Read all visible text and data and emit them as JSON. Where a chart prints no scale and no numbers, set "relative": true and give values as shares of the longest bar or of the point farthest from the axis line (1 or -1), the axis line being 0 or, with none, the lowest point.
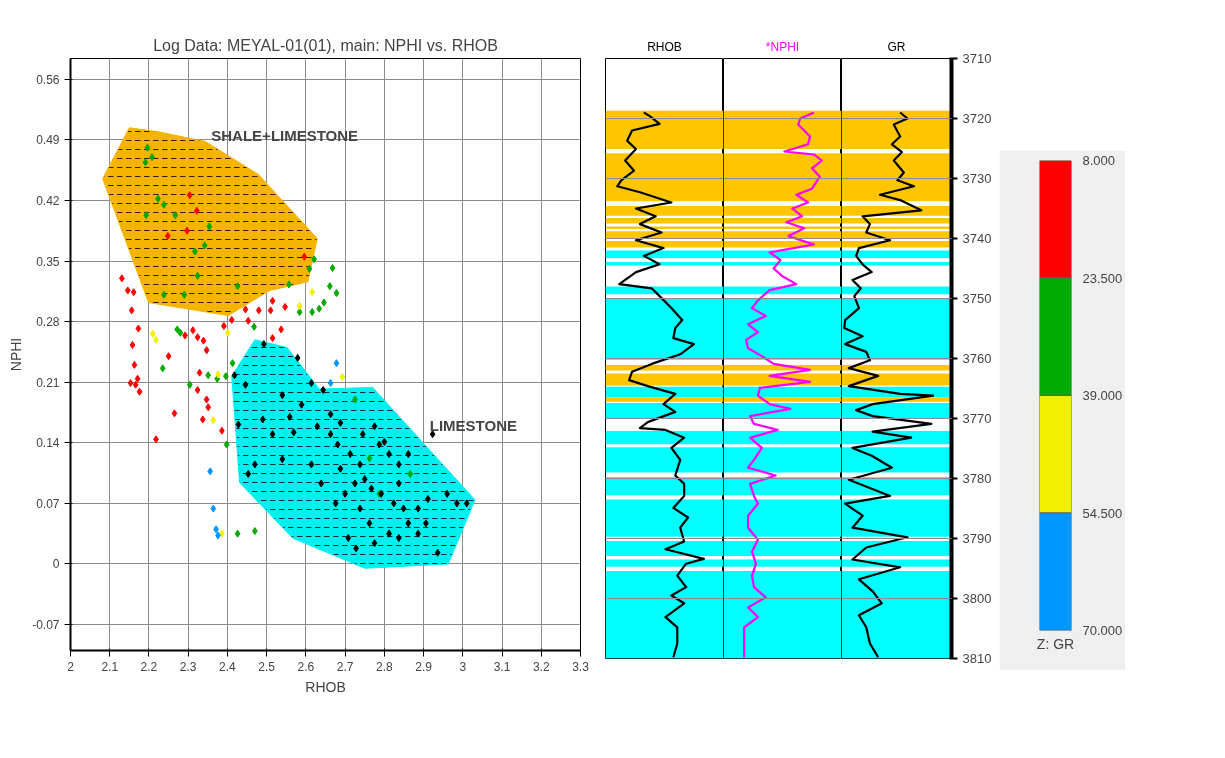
{
  "chart_data": [
    {
      "type": "scatter",
      "title": "Log Data: MEYAL-01(01), main: NPHI vs. RHOB",
      "xlabel": "RHOB",
      "ylabel": "NPHI",
      "clabel": "Z: GR",
      "xlim": [
        2,
        3.3
      ],
      "xticks": [
        2,
        2.1,
        2.2,
        2.3,
        2.4,
        2.5,
        2.6,
        2.7,
        2.8,
        2.9,
        3,
        3.1,
        3.2,
        3.3
      ],
      "ylim": [
        -0.1,
        0.584
      ],
      "yticks": [
        -0.07,
        0,
        0.07,
        0.14,
        0.21,
        0.28,
        0.35,
        0.42,
        0.49,
        0.56
      ],
      "clim": [
        8,
        70
      ],
      "cticks": [
        {
          "value": 8,
          "label": "8.000"
        },
        {
          "value": 23.5,
          "label": "23.500"
        },
        {
          "value": 39,
          "label": "39.000"
        },
        {
          "value": 54.5,
          "label": "54.500"
        },
        {
          "value": 70,
          "label": "70.000"
        }
      ],
      "colors": [
        "#ff0000",
        "#00aa00",
        "#f0f000",
        "#0096ff"
      ],
      "grid": true,
      "annotations": [
        "SHALE+LIMESTONE",
        "LIMESTONE"
      ],
      "series": [
        {
          "type": "area",
          "color": "#f5b400",
          "x": [
            2.15,
            2.227,
            2.344,
            2.479,
            2.629,
            2.605,
            2.508,
            2.402,
            2.199,
            2.082
          ],
          "values": [
            0.504,
            0.499,
            0.488,
            0.45,
            0.376,
            0.326,
            0.316,
            0.287,
            0.302,
            0.445
          ]
        },
        {
          "type": "area",
          "color": "#00f0f0",
          "x": [
            2.47,
            2.552,
            2.634,
            2.77,
            3.031,
            2.963,
            2.75,
            2.566,
            2.431,
            2.411
          ],
          "values": [
            0.259,
            0.25,
            0.202,
            0.204,
            0.074,
            0,
            -0.005,
            0.03,
            0.094,
            0.217
          ]
        },
        {
          "type": "scatter",
          "marker": "diamond",
          "x": [
            2.131,
            2.146,
            2.161,
            2.156,
            2.173,
            2.158,
            2.163,
            2.153,
            2.166,
            2.176,
            2.171,
            2.25,
            2.265,
            2.218,
            2.391,
            2.411,
            2.453,
            2.48,
            2.51,
            2.547,
            2.292,
            2.312,
            2.324,
            2.339,
            2.347,
            2.329,
            2.324,
            2.347,
            2.351,
            2.337,
            2.386,
            2.515,
            2.537,
            2.515,
            2.446,
            2.596,
            2.322,
            2.248,
            2.297,
            2.304,
            2.196,
            2.208,
            2.191,
            2.223,
            2.238,
            2.267,
            2.193,
            2.317,
            2.354,
            2.324,
            2.426,
            2.557,
            2.609,
            2.621,
            2.668,
            2.661,
            2.678,
            2.646,
            2.634,
            2.616,
            2.584,
            2.468,
            2.29,
            2.28,
            2.235,
            2.304,
            2.351,
            2.374,
            2.396,
            2.413,
            2.342,
            2.238,
            2.272,
            2.398,
            2.426,
            2.47,
            2.725,
            2.762,
            2.787,
            2.812,
            2.866,
            2.21,
            2.218,
            2.376,
            2.364,
            2.401,
            2.584,
            2.616,
            2.693,
            2.386,
            2.356,
            2.364,
            2.371,
            2.376,
            2.678,
            2.663
          ],
          "values": [
            0.33,
            0.316,
            0.314,
            0.293,
            0.272,
            0.253,
            0.23,
            0.209,
            0.207,
            0.199,
            0.214,
            0.24,
            0.174,
            0.144,
            0.275,
            0.282,
            0.281,
            0.293,
            0.293,
            0.297,
            0.264,
            0.27,
            0.262,
            0.258,
            0.247,
            0.221,
            0.201,
            0.19,
            0.181,
            0.167,
            0.154,
            0.304,
            0.271,
            0.261,
            0.294,
            0.355,
            0.408,
            0.379,
            0.385,
            0.426,
            0.481,
            0.47,
            0.464,
            0.422,
            0.415,
            0.403,
            0.403,
            0.361,
            0.39,
            0.333,
            0.321,
            0.323,
            0.341,
            0.352,
            0.342,
            0.321,
            0.313,
            0.302,
            0.295,
            0.291,
            0.291,
            0.274,
            0.311,
            0.267,
            0.226,
            0.207,
            0.218,
            0.214,
            0.217,
            0.232,
            0.368,
            0.311,
            0.271,
            0.138,
            0.035,
            0.038,
            0.19,
            0.122,
            0.081,
            0.035,
            0.104,
            0.266,
            0.259,
            0.219,
            0.166,
            0.267,
            0.298,
            0.314,
            0.216,
            0.035,
            0.107,
            0.064,
            0.04,
            0.033,
            0.232,
            0.209
          ],
          "colors": [
            "#ff0000",
            "#ff0000",
            "#ff0000",
            "#ff0000",
            "#ff0000",
            "#ff0000",
            "#ff0000",
            "#ff0000",
            "#ff0000",
            "#ff0000",
            "#ff0000",
            "#ff0000",
            "#ff0000",
            "#ff0000",
            "#ff0000",
            "#ff0000",
            "#ff0000",
            "#ff0000",
            "#ff0000",
            "#ff0000",
            "#ff0000",
            "#ff0000",
            "#ff0000",
            "#ff0000",
            "#ff0000",
            "#ff0000",
            "#ff0000",
            "#ff0000",
            "#ff0000",
            "#ff0000",
            "#ff0000",
            "#ff0000",
            "#ff0000",
            "#ff0000",
            "#ff0000",
            "#ff0000",
            "#ff0000",
            "#ff0000",
            "#ff0000",
            "#ff0000",
            "#00aa00",
            "#00aa00",
            "#00aa00",
            "#00aa00",
            "#00aa00",
            "#00aa00",
            "#00aa00",
            "#00aa00",
            "#00aa00",
            "#00aa00",
            "#00aa00",
            "#00aa00",
            "#00aa00",
            "#00aa00",
            "#00aa00",
            "#00aa00",
            "#00aa00",
            "#00aa00",
            "#00aa00",
            "#00aa00",
            "#00aa00",
            "#00aa00",
            "#00aa00",
            "#00aa00",
            "#00aa00",
            "#00aa00",
            "#00aa00",
            "#00aa00",
            "#00aa00",
            "#00aa00",
            "#00aa00",
            "#00aa00",
            "#00aa00",
            "#00aa00",
            "#00aa00",
            "#00aa00",
            "#00aa00",
            "#00aa00",
            "#00aa00",
            "#00aa00",
            "#00aa00",
            "#f0f000",
            "#f0f000",
            "#f0f000",
            "#f0f000",
            "#f0f000",
            "#f0f000",
            "#f0f000",
            "#f0f000",
            "#f0f000",
            "#0096ff",
            "#0096ff",
            "#0096ff",
            "#0096ff",
            "#0096ff",
            "#0096ff"
          ]
        },
        {
          "type": "scatter",
          "marker": "diamond",
          "color": "#000000",
          "x": [
            2.493,
            2.579,
            2.418,
            2.614,
            2.644,
            2.589,
            2.663,
            2.688,
            2.49,
            2.515,
            2.453,
            2.47,
            2.54,
            2.614,
            2.639,
            2.688,
            2.713,
            2.725,
            2.738,
            2.762,
            2.775,
            2.812,
            2.837,
            2.861,
            2.886,
            2.936,
            2.738,
            2.75,
            2.767,
            2.792,
            2.824,
            2.849,
            2.886,
            2.911,
            2.96,
            2.985,
            3.01,
            2.787,
            2.812,
            2.837,
            2.663,
            2.681,
            2.629,
            2.569,
            2.428,
            2.446,
            2.54,
            2.559,
            2.745,
            2.775,
            2.8,
            2.861,
            2.923,
            2.728,
            2.708,
            2.906,
            2.837,
            2.7,
            2.676
          ],
          "values": [
            0.254,
            0.238,
            0.218,
            0.209,
            0.201,
            0.184,
            0.173,
            0.163,
            0.167,
            0.15,
            0.104,
            0.115,
            0.121,
            0.115,
            0.093,
            0.11,
            0.127,
            0.093,
            0.064,
            0.047,
            0.024,
            0.035,
            0.03,
            0.047,
            0.035,
            0.013,
            0.115,
            0.098,
            0.087,
            0.081,
            0.07,
            0.064,
            0.064,
            0.075,
            0.081,
            0.07,
            0.07,
            0.138,
            0.127,
            0.115,
            0.15,
            0.138,
            0.159,
            0.152,
            0.161,
            0.207,
            0.195,
            0.17,
            0.15,
            0.159,
            0.141,
            0.127,
            0.15,
            0.018,
            0.03,
            0.047,
            0.093,
            0.081,
            0.07
          ]
        }
      ]
    },
    {
      "type": "line",
      "orientation": "horizontal",
      "relative": true,
      "title": "RHOB",
      "ylim": [
        3810,
        3710
      ],
      "yticks": [
        3710,
        3720,
        3730,
        3740,
        3750,
        3760,
        3770,
        3780,
        3790,
        3800,
        3810
      ],
      "tick_labels": false,
      "grid": "y",
      "bands": [
        {
          "axis": "y",
          "from": 3718.7,
          "to": 3725.1,
          "color": "#ffc600"
        },
        {
          "axis": "y",
          "from": 3725.8,
          "to": 3733.8,
          "color": "#ffc600"
        },
        {
          "axis": "y",
          "from": 3734.6,
          "to": 3736.2,
          "color": "#ffc600"
        },
        {
          "axis": "y",
          "from": 3736.6,
          "to": 3737.5,
          "color": "#ffc600"
        },
        {
          "axis": "y",
          "from": 3738.0,
          "to": 3738.4,
          "color": "#ffc600"
        },
        {
          "axis": "y",
          "from": 3738.8,
          "to": 3740.1,
          "color": "#ffc600"
        },
        {
          "axis": "y",
          "from": 3740.4,
          "to": 3741.5,
          "color": "#ffc600"
        },
        {
          "axis": "y",
          "from": 3742.0,
          "to": 3743.3,
          "color": "#00ffff"
        },
        {
          "axis": "y",
          "from": 3743.9,
          "to": 3744.5,
          "color": "#00ffff"
        },
        {
          "axis": "y",
          "from": 3748.0,
          "to": 3749.3,
          "color": "#00ffff"
        },
        {
          "axis": "y",
          "from": 3750.1,
          "to": 3760.2,
          "color": "#00ffff"
        },
        {
          "axis": "y",
          "from": 3761.1,
          "to": 3762.0,
          "color": "#ffc600"
        },
        {
          "axis": "y",
          "from": 3762.5,
          "to": 3764.5,
          "color": "#ffc600"
        },
        {
          "axis": "y",
          "from": 3764.7,
          "to": 3766.5,
          "color": "#00ffff"
        },
        {
          "axis": "y",
          "from": 3766.5,
          "to": 3767.2,
          "color": "#ffc600"
        },
        {
          "axis": "y",
          "from": 3767.4,
          "to": 3769.9,
          "color": "#00ffff"
        },
        {
          "axis": "y",
          "from": 3772.1,
          "to": 3774.3,
          "color": "#00ffff"
        },
        {
          "axis": "y",
          "from": 3774.8,
          "to": 3779.0,
          "color": "#00ffff"
        },
        {
          "axis": "y",
          "from": 3779.8,
          "to": 3782.8,
          "color": "#00ffff"
        },
        {
          "axis": "y",
          "from": 3783.5,
          "to": 3789.7,
          "color": "#00ffff"
        },
        {
          "axis": "y",
          "from": 3790.4,
          "to": 3792.9,
          "color": "#00ffff"
        },
        {
          "axis": "y",
          "from": 3793.5,
          "to": 3794.7,
          "color": "#00ffff"
        },
        {
          "axis": "y",
          "from": 3795.4,
          "to": 3810,
          "color": "#00ffff"
        }
      ],
      "series": [
        {
          "color": "#000000",
          "x": [
            3719.0,
            3719.6,
            3720.9,
            3722.0,
            3723.7,
            3725.1,
            3727.0,
            3728.7,
            3730.3,
            3731.3,
            3732.3,
            3734.0,
            3735.0,
            3736.3,
            3737.6,
            3739.0,
            3740.3,
            3741.6,
            3742.9,
            3744.3,
            3745.6,
            3747.6,
            3748.3,
            3749.6,
            3751.6,
            3753.6,
            3754.9,
            3756.6,
            3757.6,
            3759.3,
            3760.9,
            3762.2,
            3763.6,
            3764.6,
            3765.9,
            3767.6,
            3768.9,
            3770.6,
            3771.6,
            3771.9,
            3773.2,
            3774.9,
            3776.9,
            3779.5,
            3780.9,
            3782.9,
            3784.9,
            3786.5,
            3788.2,
            3790.5,
            3791.8,
            3793.4,
            3794.2,
            3796.2,
            3798.1,
            3799.5,
            3800.8,
            3803.1,
            3804.8,
            3807.5,
            3809.8
          ],
          "values": [
            0.39,
            0.45,
            0.55,
            0.27,
            0.22,
            0.31,
            0.2,
            0.29,
            0.16,
            0.12,
            0.35,
            0.67,
            0.31,
            0.51,
            0.35,
            0.57,
            0.31,
            0.59,
            0.39,
            0.55,
            0.31,
            0.14,
            0.47,
            0.55,
            0.67,
            0.78,
            0.71,
            0.69,
            0.9,
            0.76,
            0.47,
            0.27,
            0.24,
            0.43,
            0.71,
            0.59,
            0.71,
            0.43,
            0.35,
            0.61,
            0.8,
            0.67,
            0.76,
            0.71,
            0.8,
            0.8,
            0.69,
            0.84,
            0.76,
            0.8,
            0.61,
            1.0,
            0.82,
            0.73,
            0.82,
            0.67,
            0.8,
            0.61,
            0.73,
            0.73,
            0.69
          ]
        }
      ]
    },
    {
      "type": "line",
      "orientation": "horizontal",
      "relative": true,
      "title": "*NPHI",
      "ylim": [
        3810,
        3710
      ],
      "yticks": [
        3710,
        3720,
        3730,
        3740,
        3750,
        3760,
        3770,
        3780,
        3790,
        3800,
        3810
      ],
      "tick_labels": false,
      "grid": "y",
      "bands": [
        {
          "axis": "y",
          "from": 3718.7,
          "to": 3725.1,
          "color": "#ffc600"
        },
        {
          "axis": "y",
          "from": 3725.8,
          "to": 3733.8,
          "color": "#ffc600"
        },
        {
          "axis": "y",
          "from": 3734.6,
          "to": 3736.2,
          "color": "#ffc600"
        },
        {
          "axis": "y",
          "from": 3736.6,
          "to": 3737.5,
          "color": "#ffc600"
        },
        {
          "axis": "y",
          "from": 3738.0,
          "to": 3738.4,
          "color": "#ffc600"
        },
        {
          "axis": "y",
          "from": 3738.8,
          "to": 3740.1,
          "color": "#ffc600"
        },
        {
          "axis": "y",
          "from": 3740.4,
          "to": 3741.5,
          "color": "#ffc600"
        },
        {
          "axis": "y",
          "from": 3742.0,
          "to": 3743.3,
          "color": "#00ffff"
        },
        {
          "axis": "y",
          "from": 3743.9,
          "to": 3744.5,
          "color": "#00ffff"
        },
        {
          "axis": "y",
          "from": 3748.0,
          "to": 3749.3,
          "color": "#00ffff"
        },
        {
          "axis": "y",
          "from": 3750.1,
          "to": 3760.2,
          "color": "#00ffff"
        },
        {
          "axis": "y",
          "from": 3761.1,
          "to": 3762.0,
          "color": "#ffc600"
        },
        {
          "axis": "y",
          "from": 3762.5,
          "to": 3764.5,
          "color": "#ffc600"
        },
        {
          "axis": "y",
          "from": 3764.7,
          "to": 3766.5,
          "color": "#00ffff"
        },
        {
          "axis": "y",
          "from": 3766.5,
          "to": 3767.2,
          "color": "#ffc600"
        },
        {
          "axis": "y",
          "from": 3767.4,
          "to": 3769.9,
          "color": "#00ffff"
        },
        {
          "axis": "y",
          "from": 3772.1,
          "to": 3774.3,
          "color": "#00ffff"
        },
        {
          "axis": "y",
          "from": 3774.8,
          "to": 3779.0,
          "color": "#00ffff"
        },
        {
          "axis": "y",
          "from": 3779.8,
          "to": 3782.8,
          "color": "#00ffff"
        },
        {
          "axis": "y",
          "from": 3783.5,
          "to": 3789.7,
          "color": "#00ffff"
        },
        {
          "axis": "y",
          "from": 3790.4,
          "to": 3792.9,
          "color": "#00ffff"
        },
        {
          "axis": "y",
          "from": 3793.5,
          "to": 3794.7,
          "color": "#00ffff"
        },
        {
          "axis": "y",
          "from": 3795.4,
          "to": 3810,
          "color": "#00ffff"
        }
      ],
      "series": [
        {
          "color": "#ff00ff",
          "x": [
            3719.0,
            3720.0,
            3721.0,
            3723.0,
            3724.3,
            3725.5,
            3726.0,
            3727.0,
            3728.3,
            3729.7,
            3731.7,
            3732.7,
            3734.0,
            3735.0,
            3736.3,
            3737.3,
            3738.3,
            3739.6,
            3741.0,
            3742.3,
            3743.6,
            3745.0,
            3746.3,
            3747.6,
            3748.6,
            3750.3,
            3751.6,
            3752.9,
            3754.3,
            3755.6,
            3756.9,
            3758.3,
            3759.6,
            3760.9,
            3761.9,
            3762.9,
            3763.9,
            3764.9,
            3766.2,
            3767.6,
            3768.4,
            3769.6,
            3770.9,
            3771.9,
            3773.2,
            3774.9,
            3776.9,
            3778.2,
            3779.5,
            3780.9,
            3782.9,
            3784.2,
            3786.2,
            3788.2,
            3790.2,
            3792.2,
            3794.2,
            3796.2,
            3798.1,
            3799.8,
            3801.5,
            3803.1,
            3804.8,
            3807.5,
            3809.8
          ],
          "values": [
            0.92,
            0.78,
            0.76,
            0.88,
            0.86,
            0.62,
            0.92,
            1.0,
            0.9,
            0.98,
            0.9,
            0.74,
            0.86,
            0.7,
            0.8,
            0.64,
            0.82,
            0.66,
            0.92,
            0.47,
            0.58,
            0.51,
            0.6,
            0.74,
            0.47,
            0.35,
            0.29,
            0.43,
            0.25,
            0.35,
            0.23,
            0.25,
            0.39,
            0.51,
            0.88,
            0.47,
            0.88,
            0.37,
            0.35,
            0.47,
            0.68,
            0.27,
            0.31,
            0.55,
            0.27,
            0.39,
            0.31,
            0.25,
            0.53,
            0.27,
            0.31,
            0.35,
            0.25,
            0.25,
            0.35,
            0.29,
            0.33,
            0.29,
            0.31,
            0.43,
            0.25,
            0.35,
            0.21,
            0.21,
            0.21
          ]
        }
      ]
    },
    {
      "type": "line",
      "orientation": "horizontal",
      "relative": true,
      "title": "GR",
      "ylim": [
        3810,
        3710
      ],
      "yticks": [
        3710,
        3720,
        3730,
        3740,
        3750,
        3760,
        3770,
        3780,
        3790,
        3800,
        3810
      ],
      "tick_labels": "y",
      "grid": "y",
      "bands": [
        {
          "axis": "y",
          "from": 3718.7,
          "to": 3725.1,
          "color": "#ffc600"
        },
        {
          "axis": "y",
          "from": 3725.8,
          "to": 3733.8,
          "color": "#ffc600"
        },
        {
          "axis": "y",
          "from": 3734.6,
          "to": 3736.2,
          "color": "#ffc600"
        },
        {
          "axis": "y",
          "from": 3736.6,
          "to": 3737.5,
          "color": "#ffc600"
        },
        {
          "axis": "y",
          "from": 3738.0,
          "to": 3738.4,
          "color": "#ffc600"
        },
        {
          "axis": "y",
          "from": 3738.8,
          "to": 3740.1,
          "color": "#ffc600"
        },
        {
          "axis": "y",
          "from": 3740.4,
          "to": 3741.5,
          "color": "#ffc600"
        },
        {
          "axis": "y",
          "from": 3742.0,
          "to": 3743.3,
          "color": "#00ffff"
        },
        {
          "axis": "y",
          "from": 3743.9,
          "to": 3744.5,
          "color": "#00ffff"
        },
        {
          "axis": "y",
          "from": 3748.0,
          "to": 3749.3,
          "color": "#00ffff"
        },
        {
          "axis": "y",
          "from": 3750.1,
          "to": 3760.2,
          "color": "#00ffff"
        },
        {
          "axis": "y",
          "from": 3761.1,
          "to": 3762.0,
          "color": "#ffc600"
        },
        {
          "axis": "y",
          "from": 3762.5,
          "to": 3764.5,
          "color": "#ffc600"
        },
        {
          "axis": "y",
          "from": 3764.7,
          "to": 3766.5,
          "color": "#00ffff"
        },
        {
          "axis": "y",
          "from": 3766.5,
          "to": 3767.2,
          "color": "#ffc600"
        },
        {
          "axis": "y",
          "from": 3767.4,
          "to": 3769.9,
          "color": "#00ffff"
        },
        {
          "axis": "y",
          "from": 3772.1,
          "to": 3774.3,
          "color": "#00ffff"
        },
        {
          "axis": "y",
          "from": 3774.8,
          "to": 3779.0,
          "color": "#00ffff"
        },
        {
          "axis": "y",
          "from": 3779.8,
          "to": 3782.8,
          "color": "#00ffff"
        },
        {
          "axis": "y",
          "from": 3783.5,
          "to": 3789.7,
          "color": "#00ffff"
        },
        {
          "axis": "y",
          "from": 3790.4,
          "to": 3792.9,
          "color": "#00ffff"
        },
        {
          "axis": "y",
          "from": 3793.5,
          "to": 3794.7,
          "color": "#00ffff"
        },
        {
          "axis": "y",
          "from": 3795.4,
          "to": 3810,
          "color": "#00ffff"
        }
      ],
      "series": [
        {
          "color": "#000000",
          "x": [
            3719.0,
            3720.0,
            3721.0,
            3723.0,
            3724.3,
            3725.6,
            3727.0,
            3729.0,
            3730.3,
            3731.3,
            3732.7,
            3733.6,
            3735.3,
            3736.3,
            3737.6,
            3739.0,
            3740.3,
            3741.6,
            3742.9,
            3744.3,
            3745.6,
            3746.9,
            3748.3,
            3749.6,
            3751.6,
            3753.6,
            3754.9,
            3756.3,
            3757.6,
            3758.9,
            3760.3,
            3761.6,
            3762.9,
            3764.6,
            3765.9,
            3766.2,
            3767.6,
            3768.6,
            3769.6,
            3770.9,
            3772.2,
            3773.2,
            3774.9,
            3776.2,
            3778.2,
            3780.2,
            3782.9,
            3784.2,
            3786.2,
            3788.2,
            3789.8,
            3791.5,
            3793.5,
            3794.8,
            3796.8,
            3798.8,
            3800.8,
            3802.8,
            3804.8,
            3807.5,
            3809.8
          ],
          "values": [
            0.64,
            0.72,
            0.57,
            0.64,
            0.55,
            0.66,
            0.57,
            0.68,
            0.61,
            0.79,
            0.42,
            0.64,
            0.87,
            0.23,
            0.31,
            0.27,
            0.53,
            0.19,
            0.16,
            0.23,
            0.33,
            0.12,
            0.21,
            0.14,
            0.19,
            0.04,
            0.03,
            0.23,
            0.04,
            0.27,
            0.31,
            0.08,
            0.4,
            0.08,
            0.64,
            1.0,
            0.34,
            0.16,
            0.34,
            0.98,
            0.34,
            0.76,
            0.12,
            0.33,
            0.55,
            0.08,
            0.53,
            0.04,
            0.23,
            0.12,
            0.72,
            0.27,
            0.12,
            0.64,
            0.19,
            0.34,
            0.44,
            0.19,
            0.27,
            0.31,
            0.4
          ]
        }
      ]
    }
  ]
}
